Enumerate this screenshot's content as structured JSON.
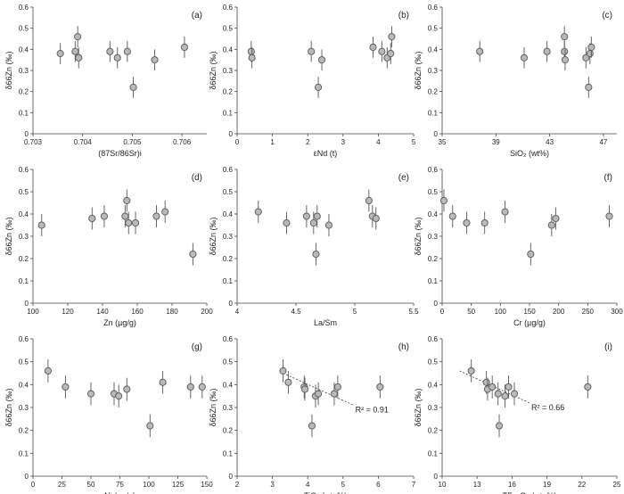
{
  "chart_data": [
    {
      "type": "scatter",
      "panel_label": "(a)",
      "xlabel": "(87Sr/86Sr)i",
      "ylabel": "δ66Zn (‰)",
      "xlim": [
        0.703,
        0.7065
      ],
      "ylim": [
        0,
        0.6
      ],
      "xticks": [
        0.703,
        0.704,
        0.705,
        0.706
      ],
      "xtick_labels": [
        "0.703",
        "0.704",
        "0.705",
        "0.706"
      ],
      "yticks": [
        0,
        0.1,
        0.2,
        0.3,
        0.4,
        0.5,
        0.6
      ],
      "ytick_labels": [
        "0",
        "0.1",
        "0.2",
        "0.3",
        "0.4",
        "0.5",
        "0.6"
      ],
      "error": 0.05,
      "points": [
        [
          0.70355,
          0.38
        ],
        [
          0.70385,
          0.39
        ],
        [
          0.7039,
          0.46
        ],
        [
          0.70392,
          0.36
        ],
        [
          0.70455,
          0.39
        ],
        [
          0.7047,
          0.36
        ],
        [
          0.7049,
          0.39
        ],
        [
          0.70502,
          0.22
        ],
        [
          0.70545,
          0.35
        ],
        [
          0.70605,
          0.41
        ]
      ]
    },
    {
      "type": "scatter",
      "panel_label": "(b)",
      "xlabel": "εNd (t)",
      "ylabel": "δ66Zn (‰)",
      "xlim": [
        0,
        5
      ],
      "ylim": [
        0,
        0.6
      ],
      "xticks": [
        0,
        1,
        2,
        3,
        4,
        5
      ],
      "xtick_labels": [
        "0",
        "1",
        "2",
        "3",
        "4",
        "5"
      ],
      "yticks": [
        0,
        0.1,
        0.2,
        0.3,
        0.4,
        0.5,
        0.6
      ],
      "ytick_labels": [
        "0",
        "0.1",
        "0.2",
        "0.3",
        "0.4",
        "0.5",
        "0.6"
      ],
      "error": 0.05,
      "points": [
        [
          0.4,
          0.39
        ],
        [
          0.42,
          0.36
        ],
        [
          2.1,
          0.39
        ],
        [
          2.3,
          0.22
        ],
        [
          2.4,
          0.35
        ],
        [
          3.85,
          0.41
        ],
        [
          4.1,
          0.39
        ],
        [
          4.25,
          0.36
        ],
        [
          4.35,
          0.38
        ],
        [
          4.38,
          0.46
        ]
      ]
    },
    {
      "type": "scatter",
      "panel_label": "(c)",
      "xlabel": "SiO₂ (wt%)",
      "ylabel": "δ66Zn (‰)",
      "xlim": [
        35,
        48
      ],
      "ylim": [
        0,
        0.6
      ],
      "xticks": [
        35,
        39,
        43,
        47
      ],
      "xtick_labels": [
        "35",
        "39",
        "43",
        "47"
      ],
      "yticks": [
        0,
        0.1,
        0.2,
        0.3,
        0.4,
        0.5,
        0.6
      ],
      "ytick_labels": [
        "0",
        "0.1",
        "0.2",
        "0.3",
        "0.4",
        "0.5",
        "0.6"
      ],
      "error": 0.05,
      "points": [
        [
          37.8,
          0.39
        ],
        [
          41.1,
          0.36
        ],
        [
          42.8,
          0.39
        ],
        [
          44.1,
          0.39
        ],
        [
          44.1,
          0.46
        ],
        [
          44.15,
          0.35
        ],
        [
          45.7,
          0.36
        ],
        [
          45.9,
          0.22
        ],
        [
          46.0,
          0.38
        ],
        [
          46.1,
          0.41
        ]
      ]
    },
    {
      "type": "scatter",
      "panel_label": "(d)",
      "xlabel": "Zn (µg/g)",
      "ylabel": "δ66Zn (‰)",
      "xlim": [
        100,
        200
      ],
      "ylim": [
        0,
        0.6
      ],
      "xticks": [
        100,
        120,
        140,
        160,
        180,
        200
      ],
      "xtick_labels": [
        "100",
        "120",
        "140",
        "160",
        "180",
        "200"
      ],
      "yticks": [
        0,
        0.1,
        0.2,
        0.3,
        0.4,
        0.5,
        0.6
      ],
      "ytick_labels": [
        "0",
        "0.1",
        "0.2",
        "0.3",
        "0.4",
        "0.5",
        "0.6"
      ],
      "error": 0.05,
      "points": [
        [
          105,
          0.35
        ],
        [
          134,
          0.38
        ],
        [
          141,
          0.39
        ],
        [
          153,
          0.39
        ],
        [
          154,
          0.46
        ],
        [
          155,
          0.36
        ],
        [
          159,
          0.36
        ],
        [
          171,
          0.39
        ],
        [
          176,
          0.41
        ],
        [
          192,
          0.22
        ]
      ]
    },
    {
      "type": "scatter",
      "panel_label": "(e)",
      "xlabel": "La/Sm",
      "ylabel": "δ66Zn (‰)",
      "xlim": [
        4,
        5.5
      ],
      "ylim": [
        0,
        0.6
      ],
      "xticks": [
        4,
        4.5,
        5,
        5.5
      ],
      "xtick_labels": [
        "4",
        "4.5",
        "5",
        "5.5"
      ],
      "yticks": [
        0,
        0.1,
        0.2,
        0.3,
        0.4,
        0.5,
        0.6
      ],
      "ytick_labels": [
        "0",
        "0.1",
        "0.2",
        "0.3",
        "0.4",
        "0.5",
        "0.6"
      ],
      "error": 0.05,
      "points": [
        [
          4.18,
          0.41
        ],
        [
          4.42,
          0.36
        ],
        [
          4.59,
          0.39
        ],
        [
          4.65,
          0.36
        ],
        [
          4.67,
          0.22
        ],
        [
          4.68,
          0.39
        ],
        [
          4.78,
          0.35
        ],
        [
          5.12,
          0.46
        ],
        [
          5.15,
          0.39
        ],
        [
          5.18,
          0.38
        ]
      ]
    },
    {
      "type": "scatter",
      "panel_label": "(f)",
      "xlabel": "Cr (µg/g)",
      "ylabel": "δ66Zn (‰)",
      "xlim": [
        0,
        300
      ],
      "ylim": [
        0,
        0.6
      ],
      "xticks": [
        0,
        50,
        100,
        150,
        200,
        250,
        300
      ],
      "xtick_labels": [
        "0",
        "50",
        "100",
        "150",
        "200",
        "250",
        "300"
      ],
      "yticks": [
        0,
        0.1,
        0.2,
        0.3,
        0.4,
        0.5,
        0.6
      ],
      "ytick_labels": [
        "0",
        "0.1",
        "0.2",
        "0.3",
        "0.4",
        "0.5",
        "0.6"
      ],
      "error": 0.05,
      "points": [
        [
          3,
          0.46
        ],
        [
          18,
          0.39
        ],
        [
          42,
          0.36
        ],
        [
          73,
          0.36
        ],
        [
          108,
          0.41
        ],
        [
          152,
          0.22
        ],
        [
          188,
          0.35
        ],
        [
          195,
          0.38
        ],
        [
          287,
          0.39
        ]
      ]
    },
    {
      "type": "scatter",
      "panel_label": "(g)",
      "xlabel": "Ni (µg/g)",
      "ylabel": "δ66Zn (‰)",
      "xlim": [
        0,
        150
      ],
      "ylim": [
        0,
        0.6
      ],
      "xticks": [
        0,
        25,
        50,
        75,
        100,
        125,
        150
      ],
      "xtick_labels": [
        "0",
        "25",
        "50",
        "75",
        "100",
        "125",
        "150"
      ],
      "yticks": [
        0,
        0.1,
        0.2,
        0.3,
        0.4,
        0.5,
        0.6
      ],
      "ytick_labels": [
        "0",
        "0.1",
        "0.2",
        "0.3",
        "0.4",
        "0.5",
        "0.6"
      ],
      "error": 0.05,
      "points": [
        [
          13,
          0.46
        ],
        [
          28,
          0.39
        ],
        [
          50,
          0.36
        ],
        [
          70,
          0.36
        ],
        [
          74,
          0.35
        ],
        [
          81,
          0.38
        ],
        [
          101,
          0.22
        ],
        [
          112,
          0.41
        ],
        [
          136,
          0.39
        ],
        [
          146,
          0.39
        ]
      ]
    },
    {
      "type": "scatter",
      "panel_label": "(h)",
      "xlabel": "TiO₂ (wt. %)",
      "ylabel": "δ66Zn (‰)",
      "xlim": [
        2,
        7
      ],
      "ylim": [
        0,
        0.6
      ],
      "xticks": [
        2,
        3,
        4,
        5,
        6,
        7
      ],
      "xtick_labels": [
        "2",
        "3",
        "4",
        "5",
        "6",
        "7"
      ],
      "yticks": [
        0,
        0.1,
        0.2,
        0.3,
        0.4,
        0.5,
        0.6
      ],
      "ytick_labels": [
        "0",
        "0.1",
        "0.2",
        "0.3",
        "0.4",
        "0.5",
        "0.6"
      ],
      "error": 0.05,
      "points": [
        [
          3.3,
          0.46
        ],
        [
          3.45,
          0.41
        ],
        [
          3.9,
          0.39
        ],
        [
          3.92,
          0.38
        ],
        [
          4.12,
          0.22
        ],
        [
          4.22,
          0.35
        ],
        [
          4.3,
          0.36
        ],
        [
          4.75,
          0.36
        ],
        [
          4.85,
          0.39
        ],
        [
          6.05,
          0.39
        ]
      ],
      "trendline": {
        "x": [
          3.3,
          5.3
        ],
        "y": [
          0.45,
          0.31
        ],
        "r2_label": "R² = 0.91"
      }
    },
    {
      "type": "scatter",
      "panel_label": "(i)",
      "xlabel": "TFe₂O₃ (wt. %)",
      "ylabel": "δ66Zn (‰)",
      "xlim": [
        10,
        25
      ],
      "ylim": [
        0,
        0.6
      ],
      "xticks": [
        10,
        13,
        16,
        19,
        22,
        25
      ],
      "xtick_labels": [
        "10",
        "13",
        "16",
        "19",
        "22",
        "25"
      ],
      "yticks": [
        0,
        0.1,
        0.2,
        0.3,
        0.4,
        0.5,
        0.6
      ],
      "ytick_labels": [
        "0",
        "0.1",
        "0.2",
        "0.3",
        "0.4",
        "0.5",
        "0.6"
      ],
      "error": 0.05,
      "points": [
        [
          12.5,
          0.46
        ],
        [
          13.8,
          0.41
        ],
        [
          13.9,
          0.38
        ],
        [
          14.3,
          0.39
        ],
        [
          14.8,
          0.36
        ],
        [
          14.9,
          0.22
        ],
        [
          15.4,
          0.35
        ],
        [
          15.7,
          0.39
        ],
        [
          16.2,
          0.36
        ],
        [
          22.5,
          0.39
        ]
      ],
      "trendline": {
        "x": [
          11.5,
          17.5
        ],
        "y": [
          0.46,
          0.32
        ],
        "r2_label": "R² = 0.66"
      }
    }
  ]
}
